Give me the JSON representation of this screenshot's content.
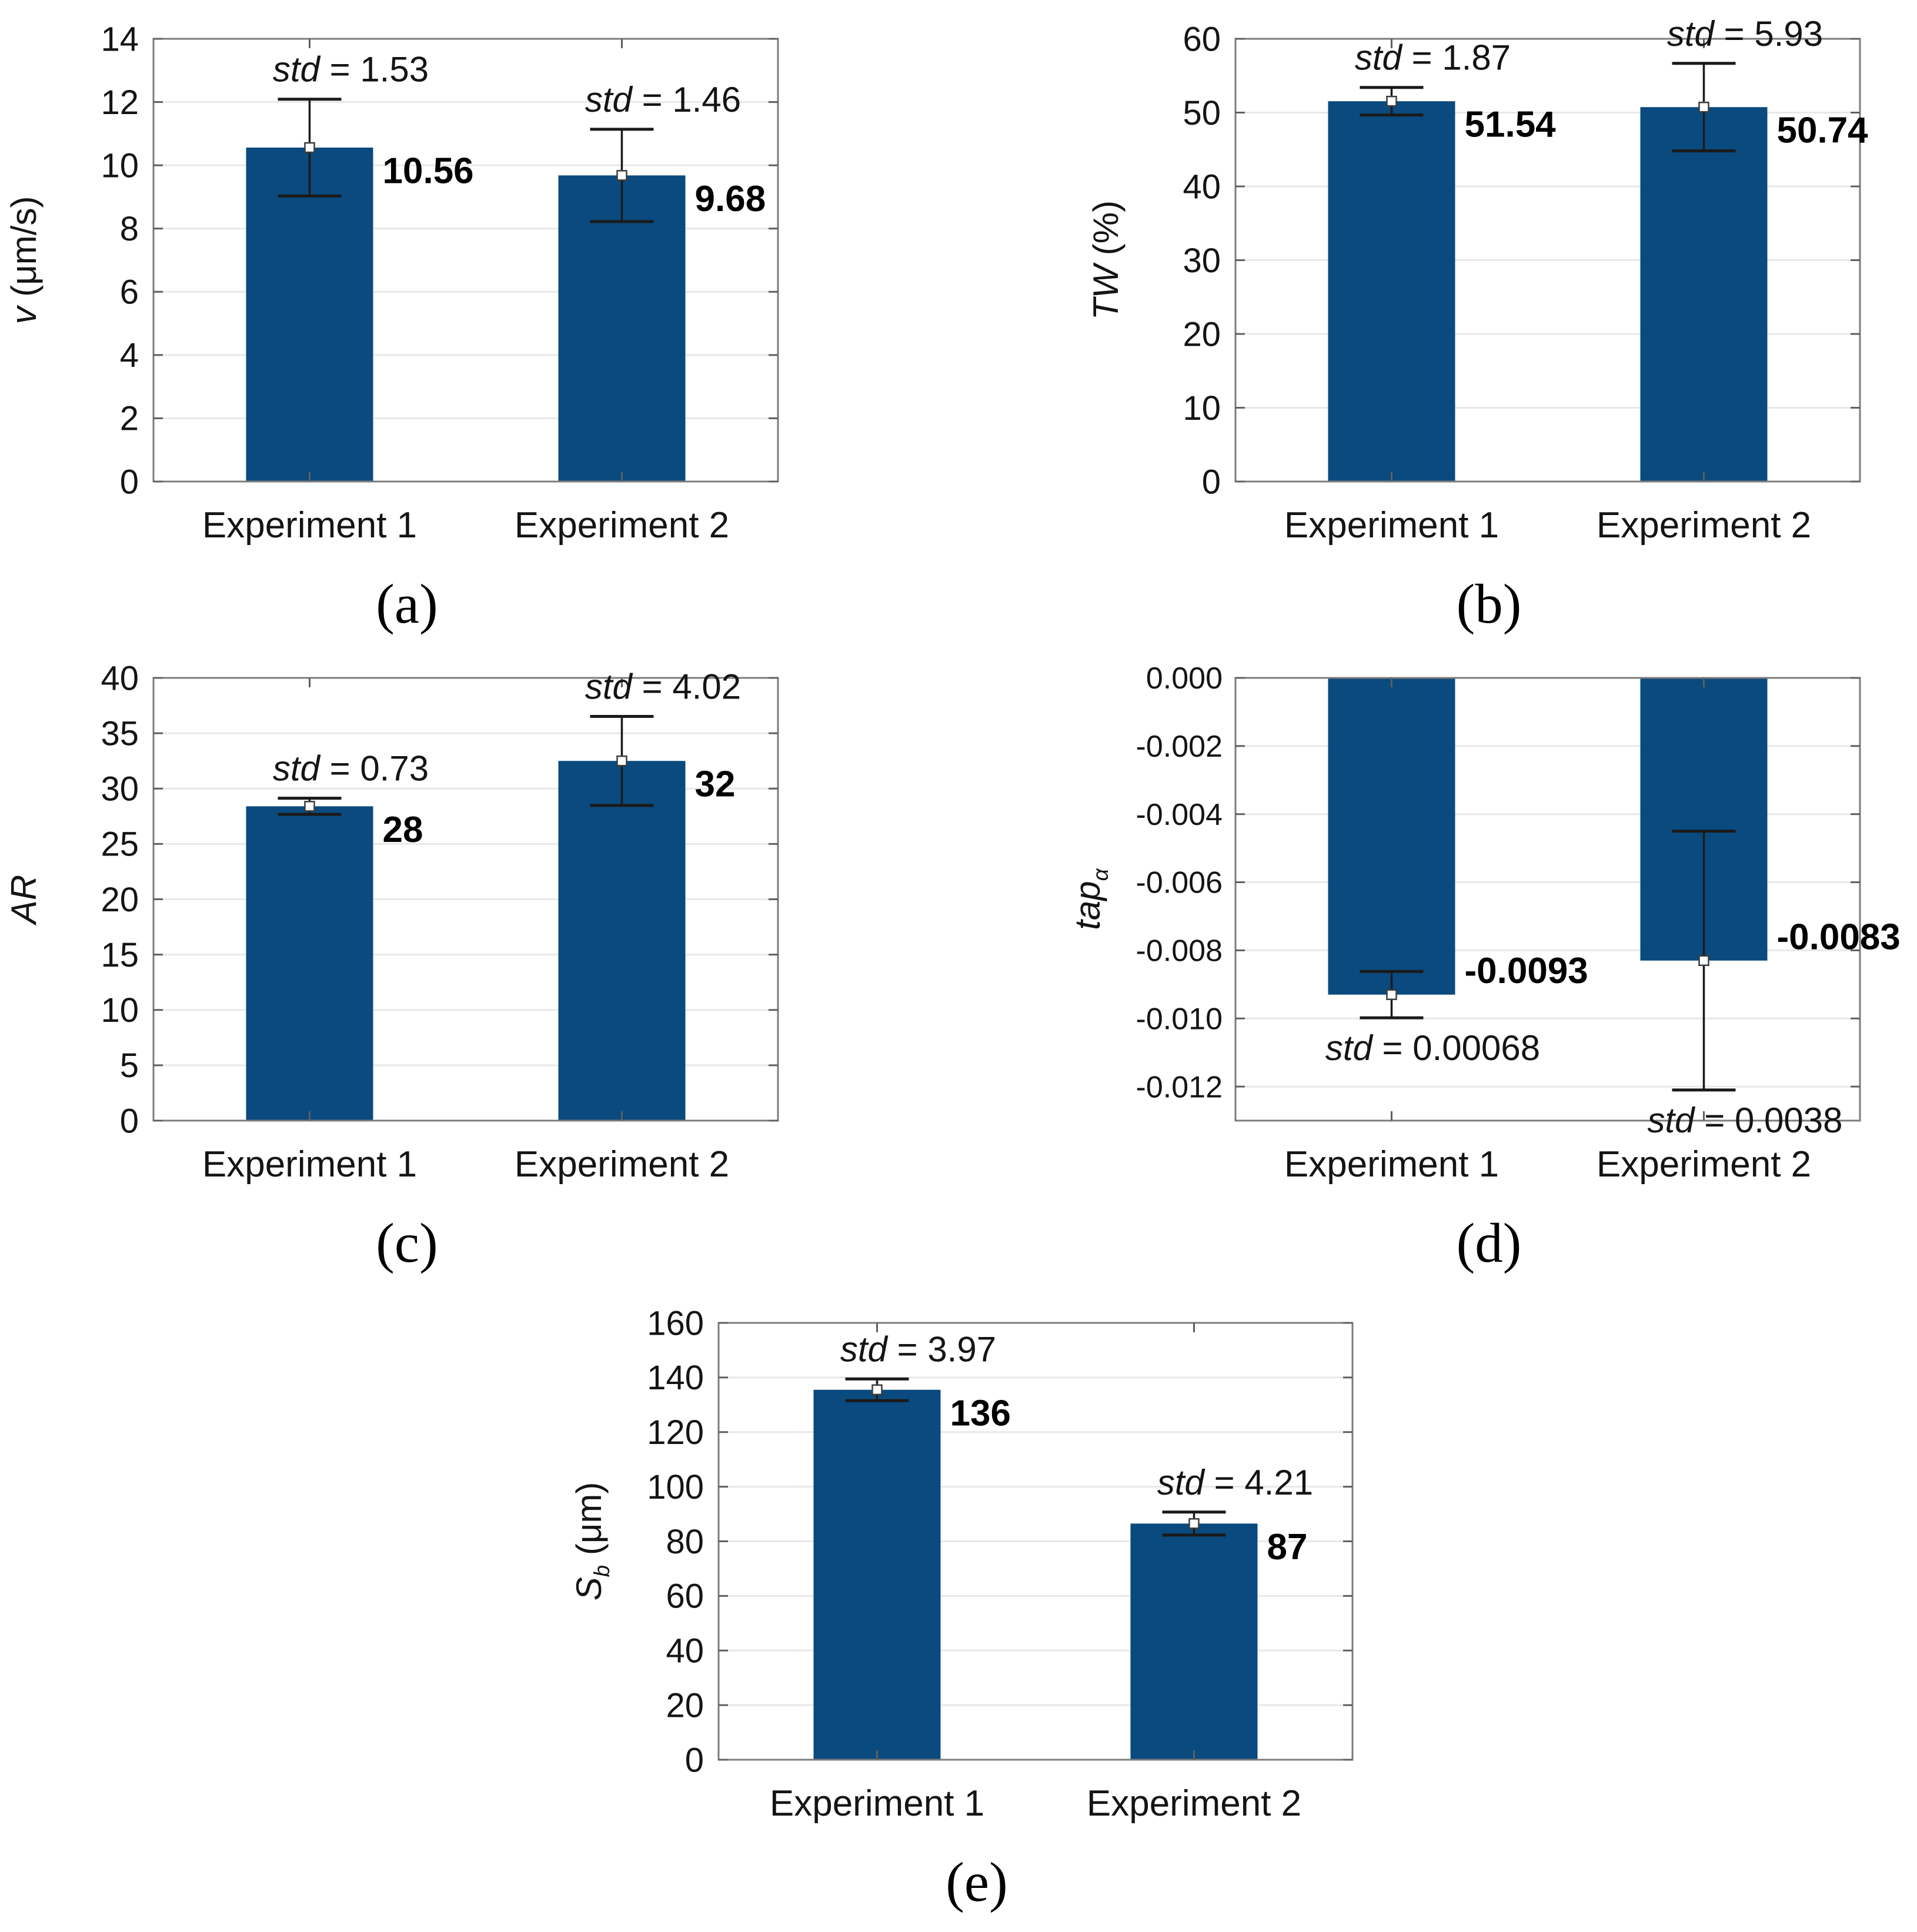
{
  "figure": {
    "background": "#ffffff",
    "bar_color": "#0a4a7e",
    "grid_color": "#e8e8e8",
    "border_color": "#7c7c7c",
    "tick_color": "#5f5f5f",
    "error_color": "#1a1a1a",
    "marker_fill": "#ffffff",
    "marker_stroke": "#3c3c3c",
    "text_color": "#141414",
    "value_color": "#000000",
    "std_prefix": "std"
  },
  "chart_data": [
    {
      "id": "a",
      "type": "bar",
      "caption": "(a)",
      "ylabel": "v (μm/s)",
      "ylabel_parts": [
        {
          "t": "v",
          "i": true
        },
        {
          "t": " (μm/s)"
        }
      ],
      "categories": [
        "Experiment 1",
        "Experiment 2"
      ],
      "values": [
        10.56,
        9.68
      ],
      "value_labels": [
        "10.56",
        "9.68"
      ],
      "std": [
        1.53,
        1.46
      ],
      "std_labels": [
        "1.53",
        "1.46"
      ],
      "std_position": "above",
      "ylim": [
        0,
        14
      ],
      "yticks": [
        {
          "v": 0,
          "label": "0"
        },
        {
          "v": 2,
          "label": "2"
        },
        {
          "v": 4,
          "label": "4"
        },
        {
          "v": 6,
          "label": "6"
        },
        {
          "v": 8,
          "label": "8"
        },
        {
          "v": 10,
          "label": "10"
        },
        {
          "v": 12,
          "label": "12"
        },
        {
          "v": 14,
          "label": "14"
        }
      ],
      "grid": true
    },
    {
      "id": "b",
      "type": "bar",
      "caption": "(b)",
      "ylabel": "TW (%)",
      "ylabel_parts": [
        {
          "t": "TW",
          "i": true
        },
        {
          "t": " (%)"
        }
      ],
      "categories": [
        "Experiment 1",
        "Experiment 2"
      ],
      "values": [
        51.54,
        50.74
      ],
      "value_labels": [
        "51.54",
        "50.74"
      ],
      "std": [
        1.87,
        5.93
      ],
      "std_labels": [
        "1.87",
        "5.93"
      ],
      "std_position": "above",
      "ylim": [
        0,
        60
      ],
      "yticks": [
        {
          "v": 0,
          "label": "0"
        },
        {
          "v": 10,
          "label": "10"
        },
        {
          "v": 20,
          "label": "20"
        },
        {
          "v": 30,
          "label": "30"
        },
        {
          "v": 40,
          "label": "40"
        },
        {
          "v": 50,
          "label": "50"
        },
        {
          "v": 60,
          "label": "60"
        }
      ],
      "grid": true
    },
    {
      "id": "c",
      "type": "bar",
      "caption": "(c)",
      "ylabel": "AR",
      "ylabel_parts": [
        {
          "t": "AR",
          "i": true
        }
      ],
      "categories": [
        "Experiment 1",
        "Experiment 2"
      ],
      "values": [
        28.4,
        32.5
      ],
      "value_labels": [
        "28",
        "32"
      ],
      "std": [
        0.73,
        4.02
      ],
      "std_labels": [
        "0.73",
        "4.02"
      ],
      "std_position": "above",
      "ylim": [
        0,
        40
      ],
      "yticks": [
        {
          "v": 0,
          "label": "0"
        },
        {
          "v": 5,
          "label": "5"
        },
        {
          "v": 10,
          "label": "10"
        },
        {
          "v": 15,
          "label": "15"
        },
        {
          "v": 20,
          "label": "20"
        },
        {
          "v": 25,
          "label": "25"
        },
        {
          "v": 30,
          "label": "30"
        },
        {
          "v": 35,
          "label": "35"
        },
        {
          "v": 40,
          "label": "40"
        }
      ],
      "grid": true
    },
    {
      "id": "d",
      "type": "bar",
      "caption": "(d)",
      "ylabel": "tapα",
      "ylabel_parts": [
        {
          "t": "tap",
          "i": true
        },
        {
          "t": "α",
          "i": true,
          "sub": true
        }
      ],
      "categories": [
        "Experiment 1",
        "Experiment 2"
      ],
      "values": [
        -0.0093,
        -0.0083
      ],
      "value_labels": [
        "-0.0093",
        "-0.0083"
      ],
      "std": [
        0.00068,
        0.0038
      ],
      "std_labels": [
        "0.00068",
        "0.0038"
      ],
      "std_position": "below",
      "ylim": [
        -0.013,
        0
      ],
      "yticks": [
        {
          "v": 0,
          "label": "0.000"
        },
        {
          "v": -0.002,
          "label": "-0.002"
        },
        {
          "v": -0.004,
          "label": "-0.004"
        },
        {
          "v": -0.006,
          "label": "-0.006"
        },
        {
          "v": -0.008,
          "label": "-0.008"
        },
        {
          "v": -0.01,
          "label": "-0.010"
        },
        {
          "v": -0.012,
          "label": "-0.012"
        }
      ],
      "grid": true
    },
    {
      "id": "e",
      "type": "bar",
      "caption": "(e)",
      "ylabel": "Sb (μm)",
      "ylabel_parts": [
        {
          "t": "S",
          "i": true
        },
        {
          "t": "b",
          "i": true,
          "sub": true
        },
        {
          "t": " (μm)"
        }
      ],
      "categories": [
        "Experiment 1",
        "Experiment 2"
      ],
      "values": [
        135.5,
        86.5
      ],
      "value_labels": [
        "136",
        "87"
      ],
      "std": [
        3.97,
        4.21
      ],
      "std_labels": [
        "3.97",
        "4.21"
      ],
      "std_position": "above",
      "ylim": [
        0,
        160
      ],
      "yticks": [
        {
          "v": 0,
          "label": "0"
        },
        {
          "v": 20,
          "label": "20"
        },
        {
          "v": 40,
          "label": "40"
        },
        {
          "v": 60,
          "label": "60"
        },
        {
          "v": 80,
          "label": "80"
        },
        {
          "v": 100,
          "label": "100"
        },
        {
          "v": 120,
          "label": "120"
        },
        {
          "v": 140,
          "label": "140"
        },
        {
          "v": 160,
          "label": "160"
        }
      ],
      "grid": true
    }
  ]
}
